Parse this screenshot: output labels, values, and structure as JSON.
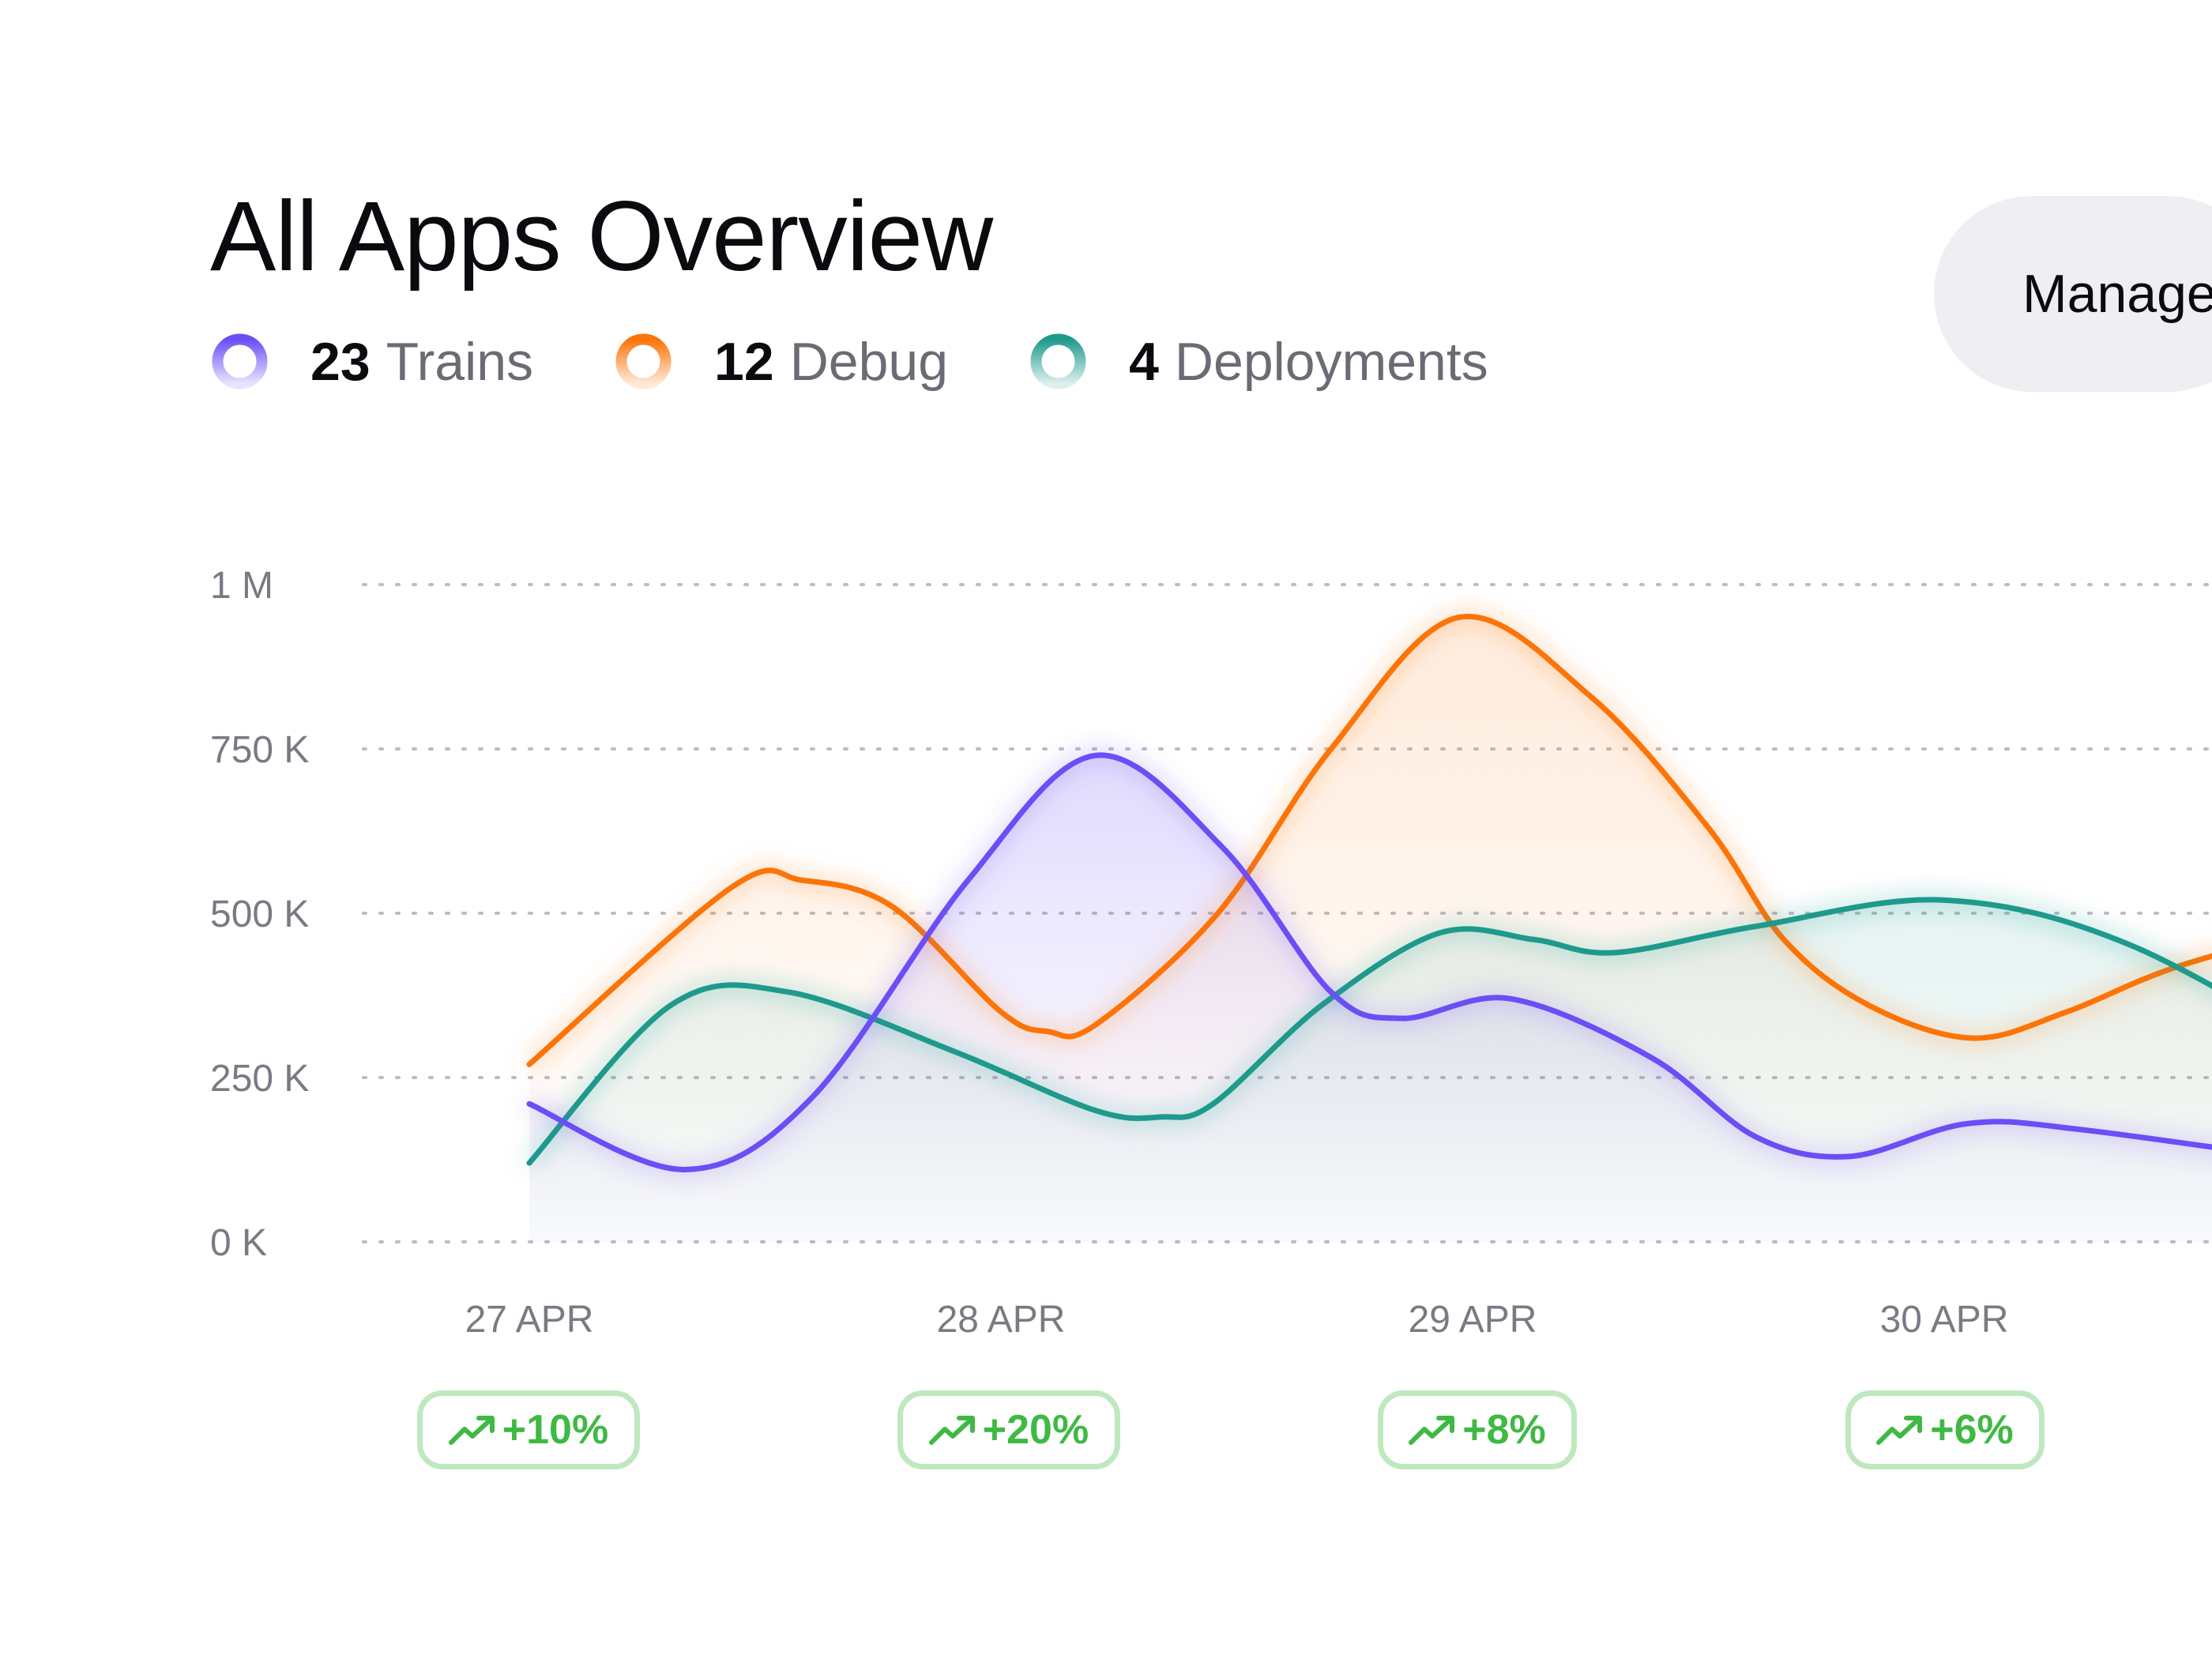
{
  "header": {
    "title": "All Apps Overview",
    "manage_button_label": "Manage"
  },
  "legend": [
    {
      "count": "23",
      "label": "Trains",
      "color": "#6b4ef6"
    },
    {
      "count": "12",
      "label": "Debug",
      "color": "#fc7408"
    },
    {
      "count": "4",
      "label": "Deployments",
      "color": "#1e9a8c"
    }
  ],
  "badges": [
    {
      "value": "+10%",
      "icon": "trending-up-icon"
    },
    {
      "value": "+20%",
      "icon": "trending-up-icon"
    },
    {
      "value": "+8%",
      "icon": "trending-up-icon"
    },
    {
      "value": "+6%",
      "icon": "trending-up-icon"
    }
  ],
  "colors": {
    "badge_text": "#3fb944",
    "badge_border": "#bfe8bf"
  },
  "chart_data": {
    "type": "area",
    "categories": [
      "27 APR",
      "28 APR",
      "29 APR",
      "30 APR"
    ],
    "xlim": [
      "26.65 APR",
      "30.55 APR"
    ],
    "ylim": [
      0,
      1000000
    ],
    "yticks": [
      {
        "value": 0,
        "label": "0 K"
      },
      {
        "value": 250000,
        "label": "250 K"
      },
      {
        "value": 500000,
        "label": "500 K"
      },
      {
        "value": 750000,
        "label": "750 K"
      },
      {
        "value": 1000000,
        "label": "1 M"
      }
    ],
    "grid": true,
    "grid_style": "dotted horizontal",
    "series": [
      {
        "name": "Debug",
        "color": "#fc7408",
        "points": [
          [
            0.0,
            270000
          ],
          [
            0.43,
            540000
          ],
          [
            0.58,
            550000
          ],
          [
            0.77,
            510000
          ],
          [
            1.0,
            350000
          ],
          [
            1.1,
            320000
          ],
          [
            1.2,
            330000
          ],
          [
            1.46,
            500000
          ],
          [
            1.7,
            750000
          ],
          [
            1.97,
            950000
          ],
          [
            2.25,
            830000
          ],
          [
            2.5,
            630000
          ],
          [
            2.66,
            460000
          ],
          [
            2.84,
            360000
          ],
          [
            3.06,
            310000
          ],
          [
            3.26,
            350000
          ],
          [
            3.5,
            420000
          ],
          [
            3.9,
            500000
          ]
        ]
      },
      {
        "name": "Deployments",
        "color": "#1e9a8c",
        "points": [
          [
            0.0,
            120000
          ],
          [
            0.3,
            360000
          ],
          [
            0.55,
            380000
          ],
          [
            0.9,
            290000
          ],
          [
            1.2,
            200000
          ],
          [
            1.34,
            190000
          ],
          [
            1.45,
            210000
          ],
          [
            1.68,
            360000
          ],
          [
            1.93,
            470000
          ],
          [
            2.13,
            460000
          ],
          [
            2.3,
            440000
          ],
          [
            2.6,
            480000
          ],
          [
            3.0,
            520000
          ],
          [
            3.4,
            450000
          ],
          [
            3.9,
            250000
          ]
        ]
      },
      {
        "name": "Trains",
        "color": "#6b4ef6",
        "points": [
          [
            0.0,
            210000
          ],
          [
            0.33,
            110000
          ],
          [
            0.6,
            220000
          ],
          [
            0.93,
            550000
          ],
          [
            1.2,
            740000
          ],
          [
            1.47,
            600000
          ],
          [
            1.7,
            380000
          ],
          [
            1.85,
            340000
          ],
          [
            2.08,
            370000
          ],
          [
            2.38,
            280000
          ],
          [
            2.6,
            160000
          ],
          [
            2.8,
            130000
          ],
          [
            3.05,
            180000
          ],
          [
            3.3,
            170000
          ],
          [
            3.9,
            110000
          ]
        ]
      }
    ]
  }
}
